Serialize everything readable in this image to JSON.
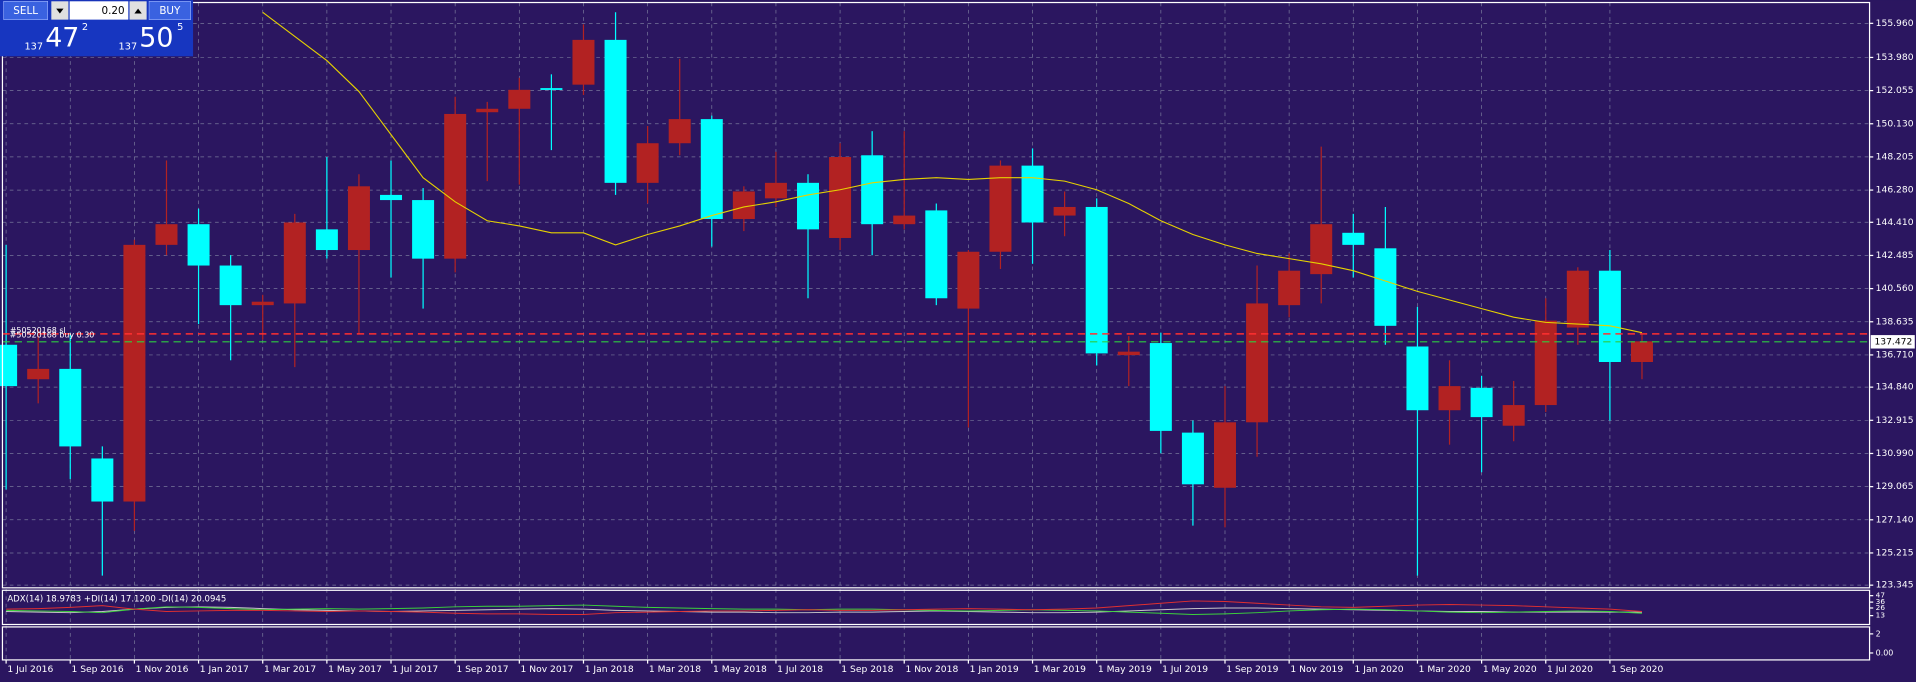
{
  "chart_data": {
    "type": "candlestick",
    "background": "#2b1660",
    "up_color": "#b22222",
    "down_color": "#00ffff",
    "grid": true,
    "categories": [
      "1 Jul 2016",
      null,
      "1 Sep 2016",
      null,
      "1 Nov 2016",
      null,
      "1 Jan 2017",
      null,
      "1 Mar 2017",
      null,
      "1 May 2017",
      null,
      "1 Jul 2017",
      null,
      "1 Sep 2017",
      null,
      "1 Nov 2017",
      null,
      "1 Jan 2018",
      null,
      "1 Mar 2018",
      null,
      "1 May 2018",
      null,
      "1 Jul 2018",
      null,
      "1 Sep 2018",
      null,
      "1 Nov 2018",
      null,
      "1 Jan 2019",
      null,
      "1 Mar 2019",
      null,
      "1 May 2019",
      null,
      "1 Jul 2019",
      null,
      "1 Sep 2019",
      null,
      "1 Nov 2019",
      null,
      "1 Jan 2020",
      null,
      "1 Mar 2020",
      null,
      "1 May 2020",
      null,
      "1 Jul 2020",
      null,
      "1 Sep 2020",
      null
    ],
    "open": [
      137.3,
      135.3,
      135.9,
      130.7,
      128.2,
      143.1,
      144.3,
      141.9,
      139.6,
      139.7,
      144.0,
      142.8,
      146.0,
      145.7,
      142.3,
      150.8,
      151.0,
      152.2,
      152.4,
      155.0,
      146.7,
      149.0,
      150.4,
      144.6,
      145.8,
      146.7,
      143.5,
      148.3,
      144.3,
      145.1,
      139.4,
      142.7,
      147.7,
      144.8,
      145.3,
      136.7,
      137.4,
      132.2,
      129.0,
      132.8,
      139.6,
      141.4,
      143.8,
      142.9,
      137.2,
      133.5,
      134.8,
      132.6,
      133.8,
      138.3,
      141.6,
      136.3
    ],
    "high": [
      143.1,
      138.2,
      138.0,
      131.4,
      143.4,
      148.0,
      145.2,
      142.5,
      140.2,
      144.9,
      148.2,
      147.2,
      148.0,
      146.4,
      151.7,
      151.4,
      152.8,
      153.0,
      155.9,
      156.6,
      150.0,
      153.9,
      150.6,
      146.5,
      148.5,
      147.2,
      149.0,
      149.7,
      149.7,
      145.5,
      142.8,
      148.0,
      148.7,
      146.2,
      145.8,
      137.8,
      138.0,
      132.9,
      134.9,
      141.9,
      142.6,
      148.8,
      144.9,
      145.3,
      139.5,
      136.4,
      135.5,
      135.2,
      140.0,
      141.8,
      142.8,
      137.9
    ],
    "low": [
      128.9,
      133.9,
      129.5,
      123.9,
      126.5,
      142.5,
      138.5,
      136.4,
      137.6,
      136.0,
      142.3,
      137.9,
      141.2,
      139.4,
      141.5,
      146.8,
      146.6,
      148.6,
      151.8,
      146.0,
      145.5,
      148.3,
      143.0,
      143.9,
      145.3,
      140.0,
      142.8,
      142.5,
      144.0,
      139.6,
      132.5,
      141.7,
      142.0,
      143.6,
      136.1,
      134.9,
      131.0,
      126.8,
      126.7,
      130.8,
      138.9,
      139.7,
      141.2,
      137.3,
      123.9,
      131.5,
      129.9,
      131.7,
      133.4,
      137.3,
      132.9,
      135.3
    ],
    "close": [
      134.9,
      135.9,
      131.4,
      128.2,
      143.1,
      144.3,
      141.9,
      139.6,
      139.8,
      144.4,
      142.8,
      146.5,
      145.7,
      142.3,
      150.7,
      151.0,
      152.1,
      152.1,
      155.0,
      146.7,
      149.0,
      150.4,
      144.6,
      146.2,
      146.7,
      144.0,
      148.2,
      144.3,
      144.8,
      140.0,
      142.7,
      147.7,
      144.4,
      145.3,
      136.8,
      136.9,
      132.3,
      129.2,
      132.8,
      139.7,
      141.6,
      144.3,
      143.1,
      138.4,
      133.5,
      134.9,
      133.1,
      133.8,
      138.7,
      141.6,
      136.3,
      137.5
    ],
    "ma": {
      "color": "#e6d200",
      "values": [
        null,
        null,
        null,
        null,
        null,
        null,
        null,
        null,
        156.6,
        155.2,
        153.8,
        152.0,
        149.5,
        147.0,
        145.6,
        144.5,
        144.2,
        143.8,
        143.8,
        143.1,
        143.7,
        144.2,
        144.8,
        145.3,
        145.6,
        146.0,
        146.3,
        146.7,
        146.9,
        147.0,
        146.9,
        147.0,
        147.0,
        146.8,
        146.3,
        145.5,
        144.5,
        143.7,
        143.1,
        142.6,
        142.3,
        142.0,
        141.6,
        141.0,
        140.4,
        139.9,
        139.4,
        138.9,
        138.6,
        138.5,
        138.4,
        138.0
      ]
    },
    "ylim": [
      123.19,
      157.31
    ],
    "yticks": [
      {
        "value": 155.96,
        "label": "155.960"
      },
      {
        "value": 153.98,
        "label": "153.980"
      },
      152.055,
      {
        "value": 150.13,
        "label": "150.130"
      },
      148.205,
      {
        "value": 146.28,
        "label": "146.280"
      },
      {
        "value": 144.41,
        "label": "144.410"
      },
      142.485,
      {
        "value": 140.56,
        "label": "140.560"
      },
      138.635,
      {
        "value": 136.71,
        "label": "136.710"
      },
      {
        "value": 134.84,
        "label": "134.840"
      },
      132.915,
      {
        "value": 130.99,
        "label": "130.990"
      },
      129.065,
      {
        "value": 127.14,
        "label": "127.140"
      },
      125.215,
      123.345
    ],
    "last_price": 137.472,
    "last_price_line_color": "#2ecc40",
    "order_line": {
      "value": 137.93,
      "color": "#ff3030",
      "labels": [
        "#50520168 sl",
        "#50520168 buy 0.30"
      ]
    },
    "indicator": {
      "label": "ADX(14) 18.9783 +DI(14) 17.1200 -DI(14) 20.0945",
      "ylim": [
        0,
        52
      ],
      "yticks": [
        13,
        26,
        36,
        47
      ],
      "series": [
        {
          "color": "#c8c8c8",
          "values": [
            20,
            19,
            18,
            20,
            24,
            27,
            28,
            27,
            25,
            23,
            22,
            21,
            20,
            21,
            22,
            23,
            24,
            25,
            24,
            22,
            21,
            20,
            19,
            19,
            18,
            18,
            19,
            19,
            20,
            21,
            20,
            19,
            18,
            18,
            19,
            21,
            23,
            25,
            26,
            26,
            25,
            24,
            23,
            22,
            21,
            20,
            20,
            19,
            19,
            19,
            19,
            19
          ]
        },
        {
          "color": "#3cd23c",
          "values": [
            22,
            21,
            20,
            18,
            24,
            28,
            27,
            25,
            23,
            24,
            25,
            24,
            25,
            26,
            28,
            29,
            29,
            30,
            31,
            29,
            27,
            26,
            25,
            24,
            24,
            23,
            24,
            24,
            23,
            22,
            21,
            22,
            23,
            22,
            21,
            19,
            17,
            15,
            16,
            18,
            21,
            23,
            24,
            23,
            21,
            19,
            18,
            19,
            20,
            21,
            20,
            17
          ]
        },
        {
          "color": "#e03030",
          "values": [
            24,
            25,
            27,
            30,
            24,
            20,
            21,
            22,
            22,
            21,
            20,
            21,
            20,
            19,
            17,
            16,
            16,
            15,
            15,
            18,
            19,
            20,
            21,
            21,
            22,
            23,
            22,
            22,
            23,
            24,
            25,
            24,
            23,
            24,
            26,
            30,
            34,
            38,
            37,
            34,
            31,
            28,
            27,
            29,
            31,
            32,
            31,
            30,
            28,
            26,
            24,
            20
          ]
        }
      ]
    },
    "sub_panel": {
      "ylim": [
        -0.6,
        2.6
      ],
      "yticks": [
        2,
        {
          "value": 0,
          "label": "0.00"
        }
      ]
    }
  },
  "trade_panel": {
    "sell": "SELL",
    "buy": "BUY",
    "lot": "0.20",
    "bid": {
      "big": "137",
      "mid": "47",
      "sup": "2"
    },
    "ask": {
      "big": "137",
      "mid": "50",
      "sup": "5"
    }
  }
}
